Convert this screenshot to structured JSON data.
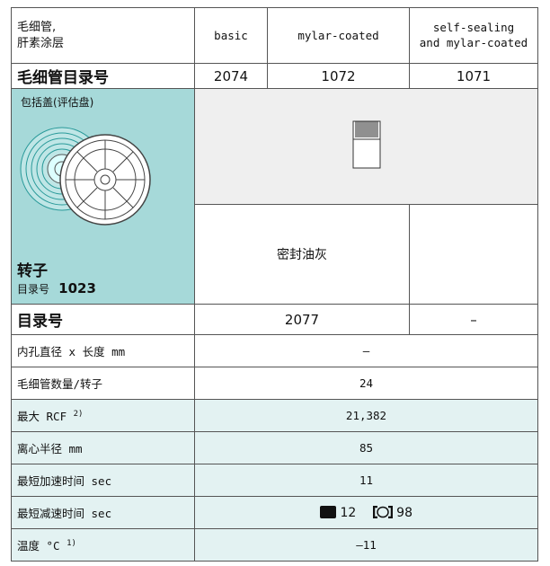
{
  "header": {
    "label": "毛细管,\n肝素涂层",
    "columns": [
      "basic",
      "mylar-coated",
      "self-sealing\nand mylar-coated"
    ]
  },
  "capillary_catalog": {
    "label": "毛细管目录号",
    "values": [
      "2074",
      "1072",
      "1071"
    ]
  },
  "rotor": {
    "lid_note": "包括盖(评估盘)",
    "label": "转子",
    "catalog_label": "目录号",
    "catalog_number": "1023",
    "sealant": "密封油灰"
  },
  "catalog": {
    "label": "目录号",
    "values": [
      "2077",
      "–"
    ]
  },
  "specs": [
    {
      "label": "内孔直径 x 长度 mm",
      "value": "–"
    },
    {
      "label": "毛细管数量/转子",
      "value": "24"
    },
    {
      "label": "最大 RCF",
      "note": "2)",
      "value": "21,382"
    },
    {
      "label": "离心半径 mm",
      "value": "85"
    },
    {
      "label": "最短加速时间 sec",
      "value": "11"
    },
    {
      "label": "最短减速时间 sec",
      "values": [
        "12",
        "98"
      ]
    },
    {
      "label": "温度 °C",
      "note": "1)",
      "value": "–11"
    }
  ]
}
